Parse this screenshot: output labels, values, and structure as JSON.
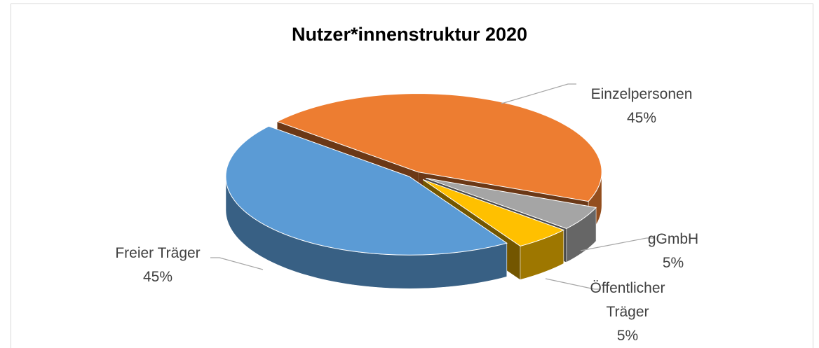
{
  "chart_data": {
    "type": "pie3d",
    "title": "Nutzer*innenstruktur 2020",
    "categories": [
      "Einzelpersonen",
      "gGmbH",
      "Öffentlicher Träger",
      "Freier Träger"
    ],
    "values": [
      45,
      5,
      5,
      45
    ],
    "value_labels": [
      "45%",
      "5%",
      "5%",
      "45%"
    ],
    "colors": [
      "#ed7d31",
      "#a5a5a5",
      "#ffc000",
      "#5b9bd5"
    ]
  }
}
